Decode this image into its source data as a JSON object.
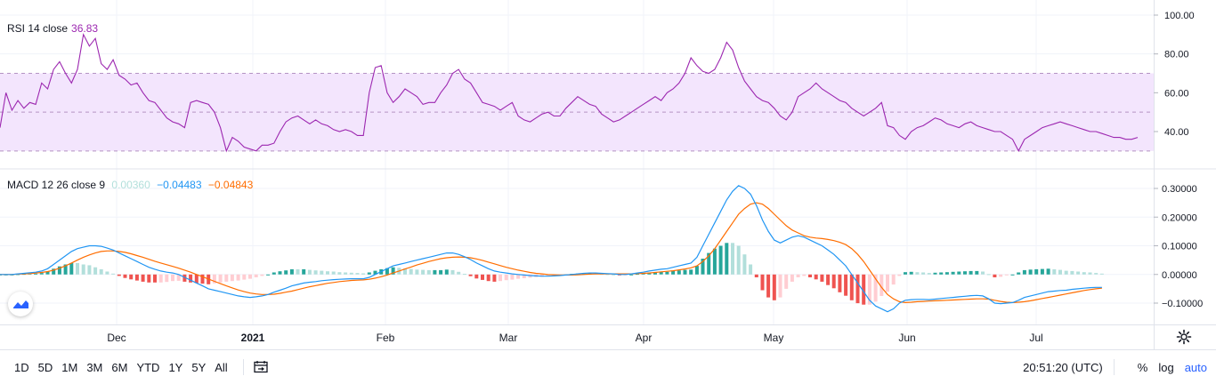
{
  "colors": {
    "rsi_line": "#9c27b0",
    "rsi_band_fill": "#f3e5fd",
    "macd_line": "#2196f3",
    "signal_line": "#ff6d00",
    "hist_pos_strong": "#26a69a",
    "hist_pos_weak": "#b2dfdb",
    "hist_neg_strong": "#ef5350",
    "hist_neg_weak": "#ffcdd2",
    "grid": "#f0f3fa",
    "axis_text": "#131722"
  },
  "rsi_legend": {
    "label": "RSI 14 close",
    "value": "36.83"
  },
  "macd_legend": {
    "label": "MACD 12 26 close 9",
    "hist_value": "0.00360",
    "macd_value": "−0.04483",
    "signal_value": "−0.04843"
  },
  "bottom_bar": {
    "ranges": [
      "1D",
      "5D",
      "1M",
      "3M",
      "6M",
      "YTD",
      "1Y",
      "5Y",
      "All"
    ],
    "clock": "20:51:20 (UTC)",
    "percent_label": "%",
    "log_label": "log",
    "auto_label": "auto"
  },
  "icons": {
    "date_range": "calendar-range-icon",
    "settings": "gear-icon",
    "logo": "tradingview-logo-icon"
  },
  "chart_data": [
    {
      "type": "line",
      "title": "RSI 14 close",
      "x_ticks": [
        "Dec",
        "2021",
        "Feb",
        "Mar",
        "Apr",
        "May",
        "Jun",
        "Jul"
      ],
      "y_ticks": [
        "100.00",
        "80.00",
        "60.00",
        "40.00"
      ],
      "ylim": [
        25,
        100
      ],
      "band": [
        30,
        70
      ],
      "midline": 50,
      "series": [
        {
          "values": [
            42,
            60,
            51,
            56,
            52,
            55,
            54,
            65,
            62,
            72,
            76,
            70,
            65,
            72,
            90,
            84,
            88,
            75,
            72,
            77,
            69,
            67,
            64,
            65,
            60,
            56,
            55,
            51,
            47,
            45,
            44,
            42,
            55,
            56,
            55,
            54,
            50,
            42,
            30,
            37,
            35,
            32,
            31,
            30,
            33,
            33,
            34,
            40,
            45,
            47,
            48,
            46,
            44,
            46,
            44,
            43,
            41,
            40,
            41,
            40,
            38,
            38,
            60,
            73,
            74,
            60,
            55,
            58,
            62,
            60,
            58,
            54,
            55,
            55,
            60,
            64,
            70,
            72,
            67,
            65,
            60,
            55,
            54,
            53,
            51,
            53,
            55,
            48,
            46,
            45,
            47,
            49,
            50,
            48,
            48,
            52,
            55,
            58,
            56,
            54,
            53,
            49,
            47,
            45,
            46,
            48,
            50,
            52,
            54,
            56,
            58,
            56,
            60,
            62,
            65,
            70,
            78,
            74,
            71,
            70,
            72,
            78,
            86,
            82,
            73,
            66,
            62,
            58,
            56,
            55,
            52,
            48,
            46,
            50,
            58,
            60,
            62,
            65,
            62,
            60,
            58,
            56,
            55,
            52,
            50,
            48,
            50,
            52,
            55,
            43,
            42,
            38,
            36,
            40,
            42,
            43,
            45,
            47,
            46,
            44,
            43,
            42,
            44,
            45,
            43,
            42,
            41,
            40,
            40,
            38,
            36,
            30,
            36,
            38,
            40,
            42,
            43,
            44,
            45,
            44,
            43,
            42,
            41,
            40,
            40,
            39,
            38,
            37,
            37,
            36,
            36,
            37
          ]
        }
      ]
    },
    {
      "type": "line",
      "title": "MACD 12 26 close 9",
      "x_ticks": [
        "Dec",
        "2021",
        "Feb",
        "Mar",
        "Apr",
        "May",
        "Jun",
        "Jul"
      ],
      "y_ticks": [
        "0.30000",
        "0.20000",
        "0.10000",
        "0.00000",
        "−0.10000"
      ],
      "ylim": [
        -0.17,
        0.32
      ],
      "series": [
        {
          "name": "MACD",
          "values": [
            0.0,
            0.0,
            0.0,
            0.002,
            0.004,
            0.006,
            0.008,
            0.012,
            0.02,
            0.035,
            0.05,
            0.065,
            0.08,
            0.09,
            0.095,
            0.1,
            0.1,
            0.098,
            0.092,
            0.085,
            0.075,
            0.065,
            0.055,
            0.045,
            0.035,
            0.025,
            0.018,
            0.012,
            0.008,
            0.005,
            0.0,
            -0.01,
            -0.02,
            -0.03,
            -0.04,
            -0.05,
            -0.055,
            -0.06,
            -0.065,
            -0.07,
            -0.075,
            -0.078,
            -0.08,
            -0.078,
            -0.075,
            -0.07,
            -0.062,
            -0.055,
            -0.048,
            -0.04,
            -0.035,
            -0.03,
            -0.027,
            -0.025,
            -0.022,
            -0.02,
            -0.018,
            -0.017,
            -0.016,
            -0.015,
            -0.015,
            -0.015,
            -0.01,
            0.0,
            0.01,
            0.02,
            0.03,
            0.035,
            0.04,
            0.045,
            0.05,
            0.055,
            0.06,
            0.065,
            0.07,
            0.075,
            0.075,
            0.07,
            0.062,
            0.052,
            0.04,
            0.03,
            0.02,
            0.012,
            0.008,
            0.005,
            0.002,
            0.0,
            -0.002,
            -0.004,
            -0.005,
            -0.006,
            -0.006,
            -0.005,
            -0.004,
            -0.002,
            0.0,
            0.002,
            0.004,
            0.005,
            0.005,
            0.004,
            0.003,
            0.002,
            0.0,
            0.0,
            0.002,
            0.005,
            0.008,
            0.012,
            0.015,
            0.018,
            0.02,
            0.025,
            0.03,
            0.035,
            0.04,
            0.06,
            0.1,
            0.14,
            0.18,
            0.22,
            0.26,
            0.29,
            0.31,
            0.3,
            0.28,
            0.24,
            0.19,
            0.15,
            0.12,
            0.11,
            0.12,
            0.13,
            0.135,
            0.13,
            0.12,
            0.11,
            0.1,
            0.085,
            0.07,
            0.05,
            0.03,
            0.0,
            -0.03,
            -0.06,
            -0.09,
            -0.11,
            -0.12,
            -0.13,
            -0.12,
            -0.1,
            -0.09,
            -0.088,
            -0.087,
            -0.087,
            -0.088,
            -0.086,
            -0.084,
            -0.082,
            -0.08,
            -0.078,
            -0.076,
            -0.074,
            -0.073,
            -0.075,
            -0.085,
            -0.1,
            -0.102,
            -0.1,
            -0.098,
            -0.09,
            -0.08,
            -0.075,
            -0.07,
            -0.065,
            -0.06,
            -0.058,
            -0.056,
            -0.055,
            -0.052,
            -0.05,
            -0.048,
            -0.046,
            -0.045,
            -0.045
          ]
        },
        {
          "name": "Signal",
          "values": [
            0.0,
            0.0,
            0.0,
            0.001,
            0.002,
            0.003,
            0.005,
            0.007,
            0.01,
            0.015,
            0.022,
            0.03,
            0.04,
            0.05,
            0.06,
            0.068,
            0.075,
            0.08,
            0.082,
            0.082,
            0.08,
            0.077,
            0.072,
            0.066,
            0.06,
            0.053,
            0.046,
            0.04,
            0.034,
            0.028,
            0.022,
            0.015,
            0.008,
            0.0,
            -0.008,
            -0.016,
            -0.024,
            -0.032,
            -0.04,
            -0.047,
            -0.054,
            -0.06,
            -0.065,
            -0.068,
            -0.07,
            -0.07,
            -0.069,
            -0.066,
            -0.062,
            -0.058,
            -0.053,
            -0.048,
            -0.043,
            -0.039,
            -0.035,
            -0.031,
            -0.028,
            -0.025,
            -0.023,
            -0.021,
            -0.02,
            -0.019,
            -0.017,
            -0.013,
            -0.008,
            -0.002,
            0.005,
            0.012,
            0.019,
            0.026,
            0.033,
            0.039,
            0.045,
            0.05,
            0.055,
            0.058,
            0.06,
            0.061,
            0.06,
            0.058,
            0.054,
            0.049,
            0.043,
            0.037,
            0.031,
            0.025,
            0.02,
            0.015,
            0.011,
            0.007,
            0.004,
            0.002,
            0.0,
            -0.001,
            -0.002,
            -0.002,
            -0.002,
            -0.001,
            0.0,
            0.001,
            0.002,
            0.002,
            0.002,
            0.002,
            0.002,
            0.002,
            0.002,
            0.003,
            0.004,
            0.005,
            0.007,
            0.009,
            0.011,
            0.013,
            0.016,
            0.019,
            0.023,
            0.03,
            0.045,
            0.065,
            0.09,
            0.12,
            0.15,
            0.18,
            0.21,
            0.23,
            0.245,
            0.25,
            0.245,
            0.23,
            0.21,
            0.19,
            0.17,
            0.155,
            0.145,
            0.135,
            0.13,
            0.127,
            0.125,
            0.122,
            0.118,
            0.112,
            0.104,
            0.09,
            0.07,
            0.045,
            0.015,
            -0.015,
            -0.045,
            -0.07,
            -0.085,
            -0.095,
            -0.098,
            -0.097,
            -0.095,
            -0.094,
            -0.093,
            -0.092,
            -0.091,
            -0.09,
            -0.089,
            -0.088,
            -0.087,
            -0.086,
            -0.085,
            -0.085,
            -0.086,
            -0.09,
            -0.094,
            -0.097,
            -0.098,
            -0.097,
            -0.095,
            -0.092,
            -0.088,
            -0.084,
            -0.08,
            -0.076,
            -0.072,
            -0.068,
            -0.064,
            -0.06,
            -0.056,
            -0.053,
            -0.05,
            -0.048
          ]
        }
      ]
    }
  ]
}
